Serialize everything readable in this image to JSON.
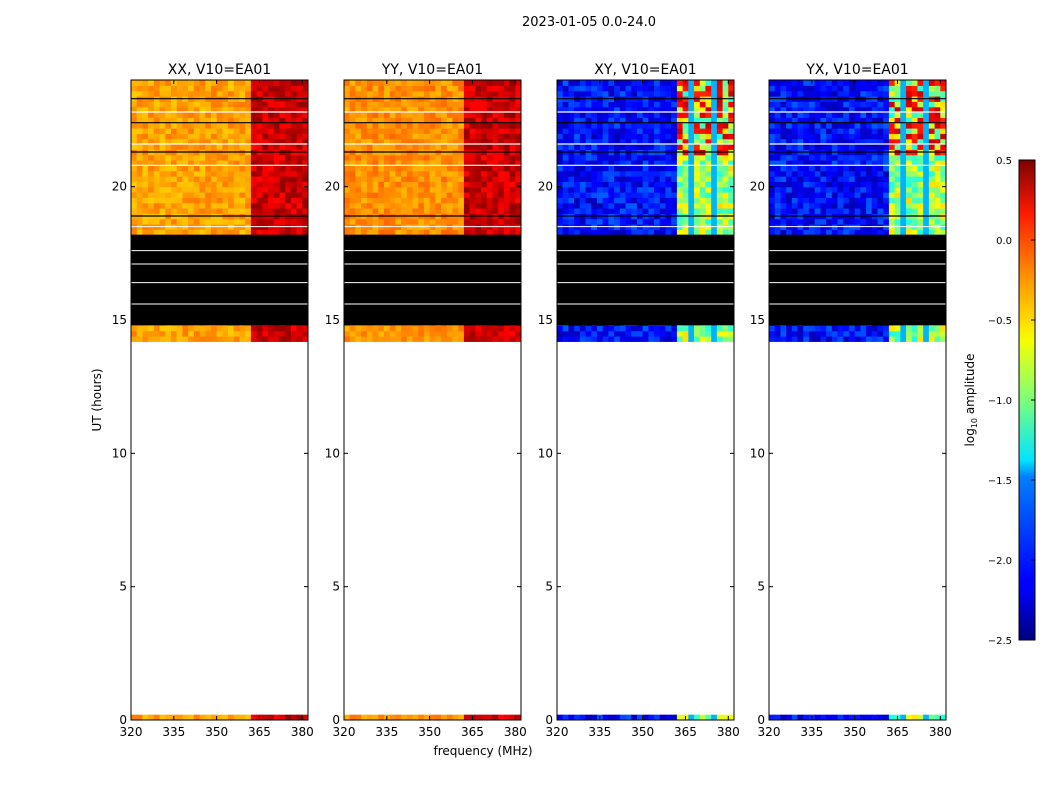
{
  "chart_data": {
    "type": "heatmap",
    "title": "2023-01-05 0.0-24.0",
    "xlabel": "frequency (MHz)",
    "ylabel": "UT (hours)",
    "xlim": [
      320,
      382
    ],
    "ylim": [
      0,
      24
    ],
    "x_ticks": [
      320,
      335,
      350,
      365,
      380
    ],
    "y_ticks": [
      0,
      5,
      10,
      15,
      20
    ],
    "panels": [
      {
        "name": "XX, V10=EA01",
        "pol": "XX",
        "base_level": -0.35
      },
      {
        "name": "YY, V10=EA01",
        "pol": "YY",
        "base_level": -0.3
      },
      {
        "name": "XY, V10=EA01",
        "pol": "XY",
        "base_level": -2.1
      },
      {
        "name": "YX, V10=EA01",
        "pol": "YX",
        "base_level": -2.1
      }
    ],
    "data_ranges_hours": [
      [
        0.0,
        0.2
      ],
      [
        14.2,
        24.0
      ]
    ],
    "flagged_black_hours": [
      [
        14.8,
        18.2
      ]
    ],
    "bright_band_mhz": [
      361,
      381
    ],
    "colorbar": {
      "label_prefix": "log",
      "label_sub": "10",
      "label_suffix": " amplitude",
      "vmin": -2.5,
      "vmax": 0.5,
      "ticks": [
        -2.5,
        -2.0,
        -1.5,
        -1.0,
        -0.5,
        0.0,
        0.5
      ],
      "tick_labels": [
        "−2.5",
        "−2.0",
        "−1.5",
        "−1.0",
        "−0.5",
        "0.0",
        "0.5"
      ],
      "colormap": "jet"
    }
  }
}
